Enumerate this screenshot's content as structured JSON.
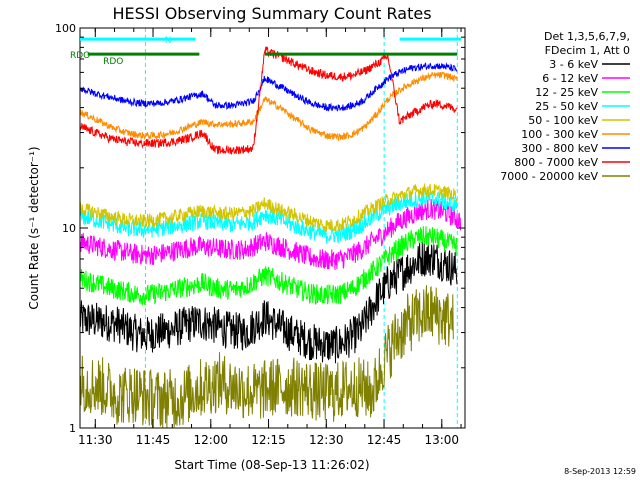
{
  "chart_data": {
    "type": "line",
    "title": "HESSI Observing Summary Count Rates",
    "xlabel": "Start Time (08-Sep-13 11:26:02)",
    "ylabel": "Count Rate (s⁻¹ detector⁻¹)",
    "y_scale": "log",
    "ylim": [
      1,
      100
    ],
    "xlim_minutes": [
      0,
      100
    ],
    "x_ticks": [
      {
        "m": 3.97,
        "label": "11:30"
      },
      {
        "m": 18.97,
        "label": "11:45"
      },
      {
        "m": 33.97,
        "label": "12:00"
      },
      {
        "m": 48.97,
        "label": "12:15"
      },
      {
        "m": 63.97,
        "label": "12:30"
      },
      {
        "m": 78.97,
        "label": "12:45"
      },
      {
        "m": 93.97,
        "label": "13:00"
      }
    ],
    "y_ticks": [
      {
        "v": 1,
        "label": "1"
      },
      {
        "v": 10,
        "label": "10"
      },
      {
        "v": 100,
        "label": "100"
      }
    ],
    "legend_header": [
      "Det 1,3,5,6,7,9,",
      "FDecim 1, Att 0"
    ],
    "legend_placement": "right",
    "series": [
      {
        "name": "3 - 6 keV",
        "color": "#000000",
        "points": [
          [
            0,
            3.5
          ],
          [
            6,
            3.4
          ],
          [
            10,
            3.3
          ],
          [
            14,
            3.0
          ],
          [
            17,
            2.9
          ],
          [
            20,
            3.0
          ],
          [
            24,
            3.1
          ],
          [
            28,
            3.3
          ],
          [
            31,
            3.4
          ],
          [
            34,
            3.3
          ],
          [
            38,
            3.1
          ],
          [
            43,
            3.0
          ],
          [
            48,
            3.6
          ],
          [
            52,
            3.2
          ],
          [
            56,
            2.9
          ],
          [
            60,
            2.7
          ],
          [
            64,
            2.6
          ],
          [
            67,
            2.6
          ],
          [
            70,
            2.8
          ],
          [
            73,
            3.1
          ],
          [
            75,
            3.7
          ],
          [
            77,
            4.4
          ],
          [
            80,
            5.3
          ],
          [
            83,
            5.9
          ],
          [
            86,
            6.5
          ],
          [
            89,
            7.1
          ],
          [
            92,
            7.1
          ],
          [
            95,
            6.6
          ],
          [
            98,
            6.1
          ]
        ]
      },
      {
        "name": "6 - 12 keV",
        "color": "#ff00ff",
        "points": [
          [
            0,
            8.5
          ],
          [
            6,
            8.0
          ],
          [
            10,
            7.7
          ],
          [
            14,
            7.4
          ],
          [
            18,
            7.3
          ],
          [
            22,
            7.5
          ],
          [
            26,
            7.8
          ],
          [
            30,
            8.1
          ],
          [
            34,
            8.0
          ],
          [
            38,
            7.8
          ],
          [
            43,
            7.8
          ],
          [
            48,
            8.6
          ],
          [
            52,
            8.1
          ],
          [
            56,
            7.6
          ],
          [
            60,
            7.1
          ],
          [
            64,
            6.9
          ],
          [
            68,
            7.0
          ],
          [
            71,
            7.4
          ],
          [
            74,
            8.0
          ],
          [
            76,
            8.6
          ],
          [
            79,
            9.4
          ],
          [
            82,
            10.5
          ],
          [
            85,
            11.3
          ],
          [
            88,
            12.1
          ],
          [
            91,
            12.5
          ],
          [
            94,
            12.1
          ],
          [
            97,
            11.4
          ],
          [
            99,
            10.8
          ]
        ]
      },
      {
        "name": "12 - 25 keV",
        "color": "#00ff00",
        "points": [
          [
            0,
            5.6
          ],
          [
            4,
            5.3
          ],
          [
            8,
            5.0
          ],
          [
            12,
            4.8
          ],
          [
            16,
            4.6
          ],
          [
            20,
            4.7
          ],
          [
            24,
            4.9
          ],
          [
            28,
            5.1
          ],
          [
            32,
            5.3
          ],
          [
            35,
            5.0
          ],
          [
            40,
            4.9
          ],
          [
            44,
            5.2
          ],
          [
            48,
            5.8
          ],
          [
            52,
            5.4
          ],
          [
            56,
            5.0
          ],
          [
            60,
            4.7
          ],
          [
            64,
            4.6
          ],
          [
            68,
            4.7
          ],
          [
            71,
            5.0
          ],
          [
            74,
            5.6
          ],
          [
            77,
            6.3
          ],
          [
            80,
            7.2
          ],
          [
            83,
            8.0
          ],
          [
            86,
            8.7
          ],
          [
            89,
            9.1
          ],
          [
            92,
            9.0
          ],
          [
            95,
            8.5
          ],
          [
            98,
            8.1
          ]
        ]
      },
      {
        "name": "25 - 50 keV",
        "color": "#00ffff",
        "points": [
          [
            0,
            11.5
          ],
          [
            4,
            11.0
          ],
          [
            8,
            10.5
          ],
          [
            12,
            10.0
          ],
          [
            16,
            9.8
          ],
          [
            20,
            9.9
          ],
          [
            24,
            10.2
          ],
          [
            28,
            10.5
          ],
          [
            32,
            10.9
          ],
          [
            35,
            10.6
          ],
          [
            40,
            10.4
          ],
          [
            45,
            10.8
          ],
          [
            48,
            11.8
          ],
          [
            52,
            11.0
          ],
          [
            56,
            10.2
          ],
          [
            60,
            9.6
          ],
          [
            64,
            9.2
          ],
          [
            68,
            9.3
          ],
          [
            71,
            9.8
          ],
          [
            74,
            10.6
          ],
          [
            77,
            11.7
          ],
          [
            80,
            12.6
          ],
          [
            83,
            13.3
          ],
          [
            86,
            13.8
          ],
          [
            89,
            14.1
          ],
          [
            92,
            14.0
          ],
          [
            95,
            13.5
          ],
          [
            98,
            13.0
          ]
        ]
      },
      {
        "name": "50 - 100 keV",
        "color": "#d4c400",
        "points": [
          [
            0,
            12.5
          ],
          [
            4,
            12.0
          ],
          [
            8,
            11.4
          ],
          [
            12,
            11.0
          ],
          [
            16,
            10.8
          ],
          [
            20,
            11.0
          ],
          [
            24,
            11.3
          ],
          [
            28,
            11.8
          ],
          [
            32,
            12.2
          ],
          [
            35,
            11.9
          ],
          [
            40,
            11.8
          ],
          [
            45,
            12.2
          ],
          [
            48,
            13.3
          ],
          [
            52,
            12.3
          ],
          [
            56,
            11.5
          ],
          [
            60,
            10.8
          ],
          [
            64,
            10.3
          ],
          [
            68,
            10.4
          ],
          [
            71,
            11.0
          ],
          [
            74,
            11.9
          ],
          [
            77,
            12.9
          ],
          [
            80,
            13.8
          ],
          [
            83,
            14.5
          ],
          [
            86,
            15.1
          ],
          [
            89,
            15.5
          ],
          [
            92,
            15.4
          ],
          [
            95,
            15.0
          ],
          [
            98,
            14.5
          ]
        ]
      },
      {
        "name": "100 - 300 keV",
        "color": "#ff8c00",
        "points": [
          [
            0,
            38
          ],
          [
            4,
            35
          ],
          [
            8,
            32
          ],
          [
            12,
            30
          ],
          [
            16,
            29
          ],
          [
            20,
            29
          ],
          [
            24,
            30
          ],
          [
            28,
            32
          ],
          [
            32,
            34
          ],
          [
            35,
            33
          ],
          [
            40,
            33
          ],
          [
            45,
            34
          ],
          [
            48,
            44
          ],
          [
            52,
            40
          ],
          [
            56,
            35
          ],
          [
            60,
            31
          ],
          [
            64,
            29
          ],
          [
            68,
            28.5
          ],
          [
            71,
            29.5
          ],
          [
            74,
            32
          ],
          [
            77,
            37
          ],
          [
            80,
            44
          ],
          [
            83,
            49
          ],
          [
            86,
            53
          ],
          [
            89,
            56
          ],
          [
            92,
            58
          ],
          [
            95,
            58
          ],
          [
            98,
            55
          ]
        ]
      },
      {
        "name": "300 - 800 keV",
        "color": "#0000ff",
        "points": [
          [
            0,
            50
          ],
          [
            4,
            47
          ],
          [
            8,
            45
          ],
          [
            12,
            43
          ],
          [
            16,
            42
          ],
          [
            20,
            42
          ],
          [
            24,
            43
          ],
          [
            28,
            45
          ],
          [
            32,
            47
          ],
          [
            35,
            41
          ],
          [
            40,
            41
          ],
          [
            45,
            43
          ],
          [
            48,
            56
          ],
          [
            52,
            51
          ],
          [
            56,
            46
          ],
          [
            60,
            42
          ],
          [
            64,
            40
          ],
          [
            68,
            40
          ],
          [
            71,
            41
          ],
          [
            74,
            44
          ],
          [
            77,
            50
          ],
          [
            80,
            56
          ],
          [
            83,
            60
          ],
          [
            86,
            63
          ],
          [
            89,
            64
          ],
          [
            92,
            65
          ],
          [
            95,
            64
          ],
          [
            98,
            62
          ]
        ]
      },
      {
        "name": "800 - 7000 keV",
        "color": "#ff0000",
        "points": [
          [
            0,
            32
          ],
          [
            4,
            30
          ],
          [
            8,
            28
          ],
          [
            12,
            27
          ],
          [
            16,
            26.5
          ],
          [
            20,
            26.5
          ],
          [
            24,
            27
          ],
          [
            28,
            28
          ],
          [
            32,
            30
          ],
          [
            35,
            24.5
          ],
          [
            40,
            24.5
          ],
          [
            45,
            25
          ],
          [
            48,
            77
          ],
          [
            52,
            72
          ],
          [
            56,
            66
          ],
          [
            60,
            61
          ],
          [
            64,
            58
          ],
          [
            68,
            57
          ],
          [
            71,
            58
          ],
          [
            74,
            61
          ],
          [
            77,
            66
          ],
          [
            80,
            72
          ],
          [
            83,
            34
          ],
          [
            86,
            37
          ],
          [
            89,
            40
          ],
          [
            92,
            42
          ],
          [
            95,
            41
          ],
          [
            98,
            39
          ]
        ]
      },
      {
        "name": "7000 - 20000 keV",
        "color": "#808000",
        "points": [
          [
            0,
            1.7
          ],
          [
            6,
            1.6
          ],
          [
            10,
            1.45
          ],
          [
            14,
            1.5
          ],
          [
            18,
            1.4
          ],
          [
            22,
            1.4
          ],
          [
            26,
            1.4
          ],
          [
            30,
            1.55
          ],
          [
            32,
            1.6
          ],
          [
            36,
            1.7
          ],
          [
            40,
            1.6
          ],
          [
            46,
            1.5
          ],
          [
            50,
            1.6
          ],
          [
            54,
            1.6
          ],
          [
            58,
            1.6
          ],
          [
            62,
            1.5
          ],
          [
            66,
            1.5
          ],
          [
            70,
            1.6
          ],
          [
            73,
            1.6
          ],
          [
            76,
            1.5
          ],
          [
            79,
            2.2
          ],
          [
            82,
            2.8
          ],
          [
            85,
            3.3
          ],
          [
            88,
            3.6
          ],
          [
            91,
            3.8
          ],
          [
            94,
            3.6
          ],
          [
            97,
            3.4
          ]
        ]
      }
    ],
    "flags": [
      {
        "label": "RDO",
        "segments": [
          [
            2,
            31
          ],
          [
            48,
            98
          ]
        ],
        "level": 74,
        "color": "#008000"
      },
      {
        "label": "N",
        "segments": [
          [
            0,
            30
          ],
          [
            83,
            99
          ]
        ],
        "level": 88,
        "color": "#00ffff"
      }
    ],
    "event_label": "RDO",
    "night_lines_minutes": [
      0,
      17,
      79,
      98
    ]
  },
  "footer": {
    "timestamp": "8-Sep-2013 12:59"
  }
}
